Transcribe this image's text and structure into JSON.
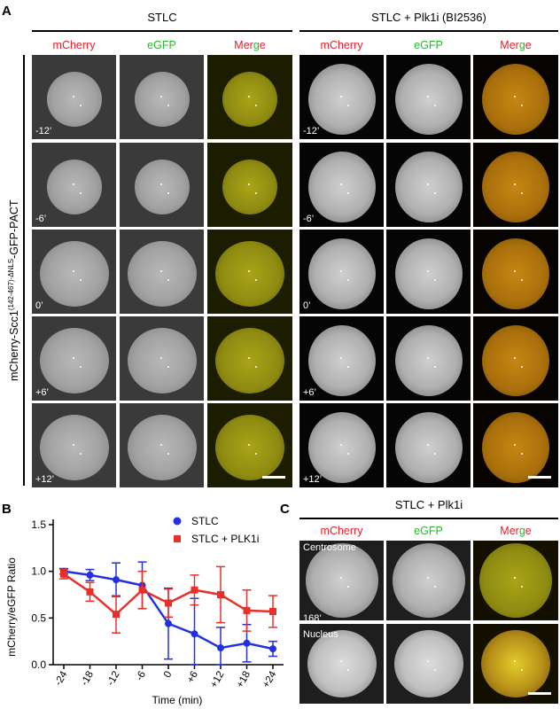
{
  "panelA": {
    "letter": "A",
    "condition_left": "STLC",
    "condition_right": "STLC + Plk1i (BI2536)",
    "channels": {
      "mcherry": "mCherry",
      "egfp": "eGFP",
      "merge_m": "M",
      "merge_er": "er",
      "merge_g": "g",
      "merge_e": "e"
    },
    "row_label_main": "mCherry-Scc1",
    "row_label_sup": "(142-467)-ΔNLS",
    "row_label_end": "-GFP-PACT",
    "times": [
      "-12’",
      "-6’",
      "0’",
      "+6’",
      "+12’"
    ]
  },
  "panelB": {
    "letter": "B"
  },
  "panelC": {
    "letter": "C",
    "condition": "STLC + Plk1i",
    "channels": {
      "mcherry": "mCherry",
      "egfp": "eGFP",
      "merge_m": "M",
      "merge_er": "er",
      "merge_g": "g",
      "merge_e": "e"
    },
    "row1_label": "Centrosome",
    "row1_time": "168’",
    "row2_label": "Nucleus"
  },
  "chart_data": {
    "type": "line",
    "title": "",
    "xlabel": "Time (min)",
    "ylabel": "mCherry/eGFP Ratio",
    "categories": [
      "-24",
      "-18",
      "-12",
      "-6",
      "0",
      "+6",
      "+12",
      "+18",
      "+24"
    ],
    "ylim": [
      0,
      1.5
    ],
    "yticks": [
      "0.0",
      "0.5",
      "1.0",
      "1.5"
    ],
    "legend_position": "top-right",
    "series": [
      {
        "name": "STLC",
        "color": "#2330e0",
        "marker": "circle",
        "values": [
          1.0,
          0.96,
          0.91,
          0.85,
          0.44,
          0.33,
          0.18,
          0.23,
          0.17
        ],
        "errors": [
          0.03,
          0.06,
          0.18,
          0.25,
          0.38,
          0.38,
          0.22,
          0.2,
          0.08
        ]
      },
      {
        "name": "STLC + PLK1i",
        "color": "#e8302a",
        "marker": "square",
        "values": [
          0.97,
          0.78,
          0.54,
          0.8,
          0.66,
          0.8,
          0.75,
          0.58,
          0.57
        ],
        "errors": [
          0.05,
          0.1,
          0.2,
          0.2,
          0.15,
          0.16,
          0.3,
          0.22,
          0.17
        ]
      }
    ]
  }
}
